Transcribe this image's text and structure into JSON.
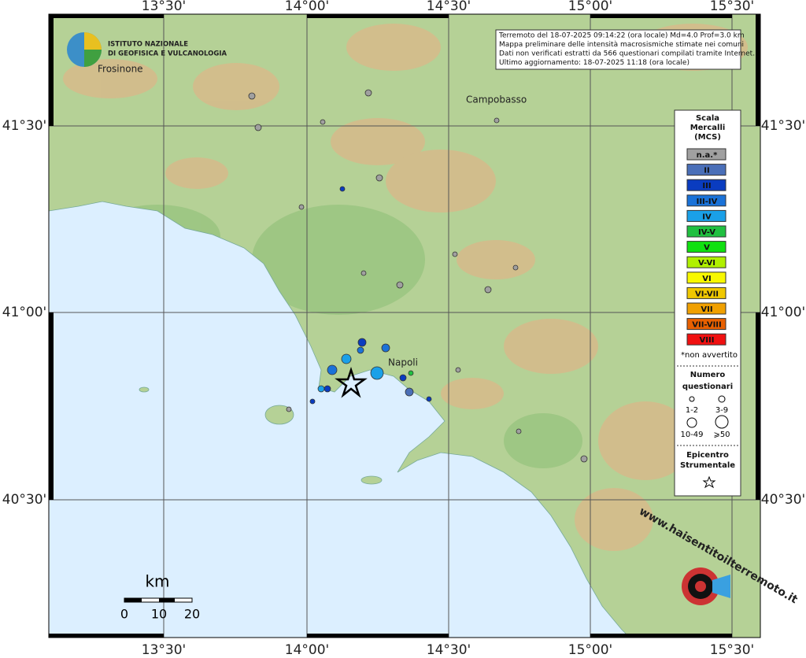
{
  "map": {
    "lon_labels": [
      "13°30'",
      "14°00'",
      "14°30'",
      "15°00'",
      "15°30'"
    ],
    "lat_labels": [
      "41°30'",
      "41°00'",
      "40°30'"
    ],
    "logo": {
      "line1": "ISTITUTO NAZIONALE",
      "line2": "DI GEOFISICA E VULCANOLOGIA"
    },
    "info": [
      "Terremoto del 18-07-2025 09:14:22 (ora locale) Md=4.0 Prof=3.0 km",
      "Mappa preliminare delle intensità macrosismiche stimate nei comuni",
      "Dati non verificati estratti da 566 questionari compilati tramite Internet.",
      "Ultimo aggiornamento: 18-07-2025 11:18 (ora locale)"
    ],
    "places": {
      "frosinone": "Frosinone",
      "campobasso": "Campobasso",
      "napoli": "Napoli"
    },
    "legend": {
      "title": [
        "Scala",
        "Mercalli",
        "(MCS)"
      ],
      "items": [
        {
          "label": "n.a.*",
          "color": "#a0a0a0"
        },
        {
          "label": "II",
          "color": "#4a6fb8"
        },
        {
          "label": "III",
          "color": "#0a3cc0"
        },
        {
          "label": "III-IV",
          "color": "#1a72d8"
        },
        {
          "label": "IV",
          "color": "#1aa0e8"
        },
        {
          "label": "IV-V",
          "color": "#20c040"
        },
        {
          "label": "V",
          "color": "#10e010"
        },
        {
          "label": "V-VI",
          "color": "#b0f000"
        },
        {
          "label": "VI",
          "color": "#f8f800"
        },
        {
          "label": "VI-VII",
          "color": "#f0c800"
        },
        {
          "label": "VII",
          "color": "#f0a000"
        },
        {
          "label": "VII-VIII",
          "color": "#e86000"
        },
        {
          "label": "VIII",
          "color": "#f01010"
        }
      ],
      "note": "*non avvertito",
      "count_title": [
        "Numero",
        "questionari"
      ],
      "counts": [
        "1-2",
        "3-9",
        "10-49",
        "⩾50"
      ],
      "epicenter": [
        "Epicentro",
        "Strumentale"
      ]
    },
    "scale": {
      "unit": "km",
      "ticks": [
        "0",
        "10",
        "20"
      ]
    },
    "watermark": "www.haisentitoilterremoto.it"
  }
}
